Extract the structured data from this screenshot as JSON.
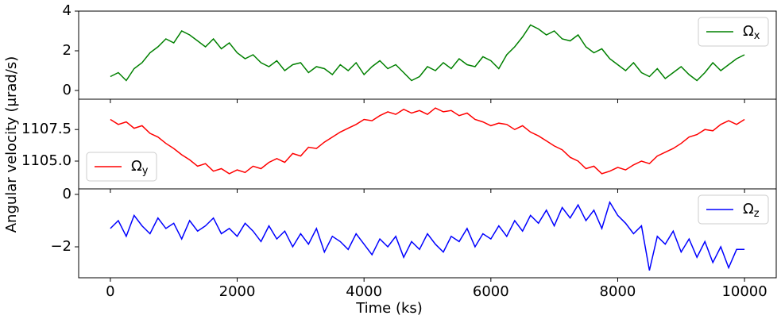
{
  "chart_data": {
    "type": "line",
    "xlabel": "Time (ks)",
    "ylabel": "Angular velocity (μrad/s)",
    "xlim": [
      -500,
      10500
    ],
    "xticks": [
      0,
      2000,
      4000,
      6000,
      8000,
      10000
    ],
    "x": [
      0,
      125,
      250,
      375,
      500,
      625,
      750,
      875,
      1000,
      1125,
      1250,
      1375,
      1500,
      1625,
      1750,
      1875,
      2000,
      2125,
      2250,
      2375,
      2500,
      2625,
      2750,
      2875,
      3000,
      3125,
      3250,
      3375,
      3500,
      3625,
      3750,
      3875,
      4000,
      4125,
      4250,
      4375,
      4500,
      4625,
      4750,
      4875,
      5000,
      5125,
      5250,
      5375,
      5500,
      5625,
      5750,
      5875,
      6000,
      6125,
      6250,
      6375,
      6500,
      6625,
      6750,
      6875,
      7000,
      7125,
      7250,
      7375,
      7500,
      7625,
      7750,
      7875,
      8000,
      8125,
      8250,
      8375,
      8500,
      8625,
      8750,
      8875,
      9000,
      9125,
      9250,
      9375,
      9500,
      9625,
      9750,
      9875,
      10000
    ],
    "panels": [
      {
        "ylim": [
          -0.44,
          4.0
        ],
        "yticks": [
          0,
          2,
          4
        ],
        "legend": "upper right",
        "series": [
          {
            "name": "Ωx",
            "color": "#008000",
            "values": [
              0.7,
              0.9,
              0.5,
              1.1,
              1.4,
              1.9,
              2.2,
              2.6,
              2.4,
              3.0,
              2.8,
              2.5,
              2.2,
              2.6,
              2.1,
              2.4,
              1.9,
              1.6,
              1.8,
              1.4,
              1.2,
              1.5,
              1.0,
              1.3,
              1.4,
              0.9,
              1.2,
              1.1,
              0.8,
              1.3,
              1.0,
              1.4,
              0.8,
              1.2,
              1.5,
              1.1,
              1.3,
              0.9,
              0.5,
              0.7,
              1.2,
              1.0,
              1.4,
              1.1,
              1.6,
              1.3,
              1.2,
              1.7,
              1.5,
              1.1,
              1.8,
              2.2,
              2.7,
              3.3,
              3.1,
              2.8,
              3.0,
              2.6,
              2.5,
              2.8,
              2.2,
              1.9,
              2.1,
              1.6,
              1.3,
              1.0,
              1.4,
              0.9,
              0.7,
              1.1,
              0.6,
              0.9,
              1.2,
              0.8,
              0.5,
              0.9,
              1.4,
              1.0,
              1.3,
              1.6,
              1.8
            ]
          }
        ]
      },
      {
        "ylim": [
          1102.8,
          1109.9
        ],
        "yticks": [
          {
            "value": 1105,
            "label": "1105.0"
          },
          1107.5
        ],
        "legend": "lower left",
        "series": [
          {
            "name": "Ωy",
            "color": "#ff0000",
            "values": [
              1108.3,
              1107.9,
              1108.1,
              1107.6,
              1107.8,
              1107.2,
              1106.9,
              1106.4,
              1106.0,
              1105.5,
              1105.1,
              1104.6,
              1104.8,
              1104.2,
              1104.4,
              1104.0,
              1104.3,
              1104.1,
              1104.6,
              1104.4,
              1104.9,
              1105.2,
              1104.9,
              1105.6,
              1105.4,
              1106.1,
              1106.0,
              1106.5,
              1106.9,
              1107.3,
              1107.6,
              1107.9,
              1108.3,
              1108.2,
              1108.6,
              1108.9,
              1108.7,
              1109.1,
              1108.8,
              1109.0,
              1108.7,
              1109.2,
              1108.9,
              1109.0,
              1108.6,
              1108.8,
              1108.3,
              1108.1,
              1107.8,
              1108.0,
              1107.9,
              1107.5,
              1107.8,
              1107.3,
              1107.0,
              1106.6,
              1106.2,
              1105.9,
              1105.3,
              1105.0,
              1104.4,
              1104.6,
              1104.0,
              1104.2,
              1104.5,
              1104.3,
              1104.7,
              1105.0,
              1104.8,
              1105.4,
              1105.7,
              1106.0,
              1106.4,
              1106.9,
              1107.1,
              1107.5,
              1107.4,
              1107.9,
              1108.2,
              1107.9,
              1108.3
            ]
          }
        ]
      },
      {
        "ylim": [
          -3.18,
          0.21
        ],
        "yticks": [
          {
            "value": -2,
            "label": "−2"
          },
          0
        ],
        "legend": "upper right",
        "series": [
          {
            "name": "Ωz",
            "color": "#0000ff",
            "values": [
              -1.3,
              -1.0,
              -1.6,
              -0.8,
              -1.2,
              -1.5,
              -0.9,
              -1.3,
              -1.1,
              -1.7,
              -1.0,
              -1.4,
              -1.2,
              -0.9,
              -1.5,
              -1.3,
              -1.6,
              -1.1,
              -1.4,
              -1.8,
              -1.2,
              -1.7,
              -1.4,
              -2.0,
              -1.5,
              -1.9,
              -1.3,
              -2.2,
              -1.6,
              -1.8,
              -2.1,
              -1.5,
              -1.9,
              -2.3,
              -1.7,
              -2.0,
              -1.6,
              -2.4,
              -1.8,
              -2.1,
              -1.5,
              -1.9,
              -2.2,
              -1.6,
              -1.8,
              -1.3,
              -2.0,
              -1.5,
              -1.7,
              -1.2,
              -1.6,
              -1.0,
              -1.4,
              -0.8,
              -1.1,
              -0.6,
              -1.2,
              -0.5,
              -0.9,
              -0.4,
              -1.0,
              -0.6,
              -1.3,
              -0.3,
              -0.8,
              -1.1,
              -1.5,
              -1.2,
              -2.9,
              -1.6,
              -1.9,
              -1.4,
              -2.2,
              -1.7,
              -2.4,
              -1.8,
              -2.6,
              -2.0,
              -2.8,
              -2.1,
              -2.1
            ]
          }
        ]
      }
    ]
  }
}
